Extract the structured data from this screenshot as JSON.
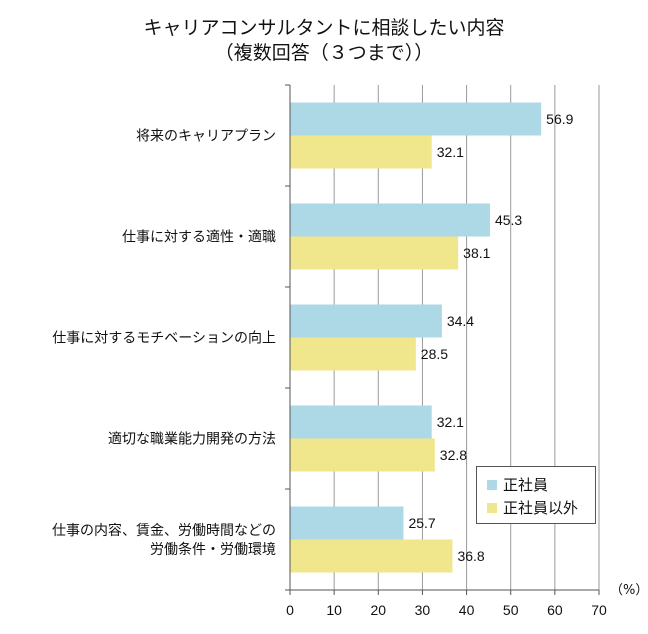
{
  "chart_data": {
    "type": "bar",
    "orientation": "horizontal",
    "title_lines": [
      "キャリアコンサルタントに相談したい内容",
      "（複数回答（３つまで））"
    ],
    "categories": [
      [
        "将来のキャリアプラン"
      ],
      [
        "仕事に対する適性・適職"
      ],
      [
        "仕事に対するモチベーションの向上"
      ],
      [
        "適切な職業能力開発の方法"
      ],
      [
        "仕事の内容、賃金、労働時間などの",
        "労働条件・労働環境"
      ]
    ],
    "series": [
      {
        "name": "正社員",
        "color": "#add8e6",
        "values": [
          56.9,
          45.3,
          34.4,
          32.1,
          25.7
        ]
      },
      {
        "name": "正社員以外",
        "color": "#f0e68c",
        "values": [
          32.1,
          38.1,
          28.5,
          32.8,
          36.8
        ]
      }
    ],
    "xlim": [
      0,
      70
    ],
    "xticks": [
      0,
      10,
      20,
      30,
      40,
      50,
      60,
      70
    ],
    "unit": "（%）",
    "grid": true,
    "legend_position": "bottom-right"
  }
}
